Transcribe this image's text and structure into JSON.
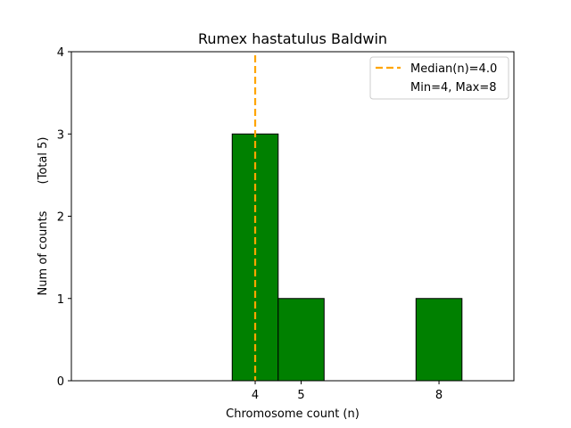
{
  "chart_data": {
    "type": "bar",
    "title": "Rumex hastatulus Baldwin",
    "xlabel": "Chromosome count (n)",
    "ylabel": "Num of counts",
    "ylabel_note": "(Total 5)",
    "bins": [
      {
        "x": 4,
        "count": 3
      },
      {
        "x": 5,
        "count": 1
      },
      {
        "x": 8,
        "count": 1
      }
    ],
    "xticks": [
      4,
      5,
      8
    ],
    "yticks": [
      0,
      1,
      2,
      3,
      4
    ],
    "xlim": [
      0,
      9.63
    ],
    "ylim": [
      0,
      4
    ],
    "median": 4.0,
    "legend": {
      "position": "top-right",
      "median_label": "Median(n)=4.0",
      "range_label": "Min=4, Max=8"
    },
    "colors": {
      "bar_fill": "#008000",
      "bar_edge": "#000000",
      "median_line": "#FFA500"
    }
  }
}
